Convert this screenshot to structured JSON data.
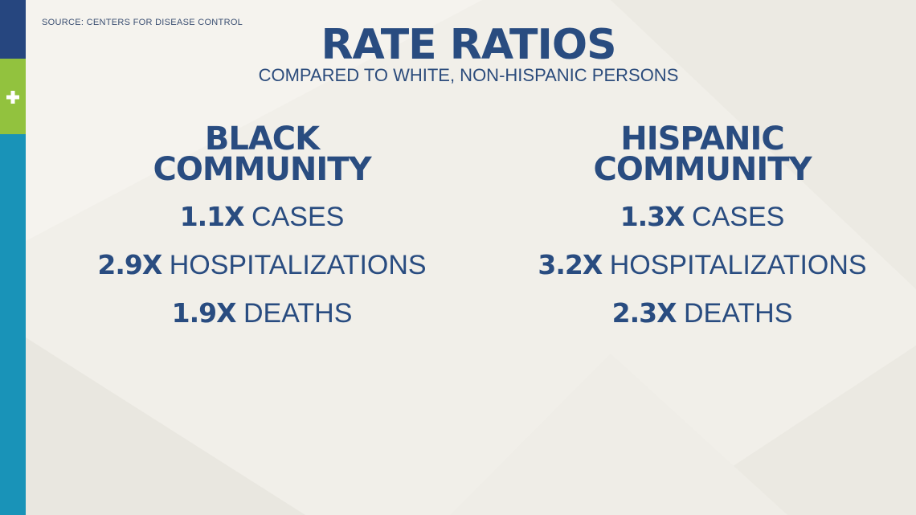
{
  "source": "SOURCE: CENTERS FOR DISEASE CONTROL",
  "title": "RATE RATIOS",
  "subtitle": "COMPARED TO WHITE, NON-HISPANIC PERSONS",
  "colors": {
    "navy": "#294c80",
    "green_accent": "#92c23e",
    "teal_accent": "#1993b8",
    "background": "#f1efe9"
  },
  "icons": [
    "plus-icon"
  ],
  "groups": [
    {
      "heading_line1": "BLACK",
      "heading_line2": "COMMUNITY",
      "stats": [
        {
          "multiplier": "1.1X",
          "label": "CASES"
        },
        {
          "multiplier": "2.9X",
          "label": "HOSPITALIZATIONS"
        },
        {
          "multiplier": "1.9X",
          "label": "DEATHS"
        }
      ]
    },
    {
      "heading_line1": "HISPANIC",
      "heading_line2": "COMMUNITY",
      "stats": [
        {
          "multiplier": "1.3X",
          "label": "CASES"
        },
        {
          "multiplier": "3.2X",
          "label": "HOSPITALIZATIONS"
        },
        {
          "multiplier": "2.3X",
          "label": "DEATHS"
        }
      ]
    }
  ]
}
